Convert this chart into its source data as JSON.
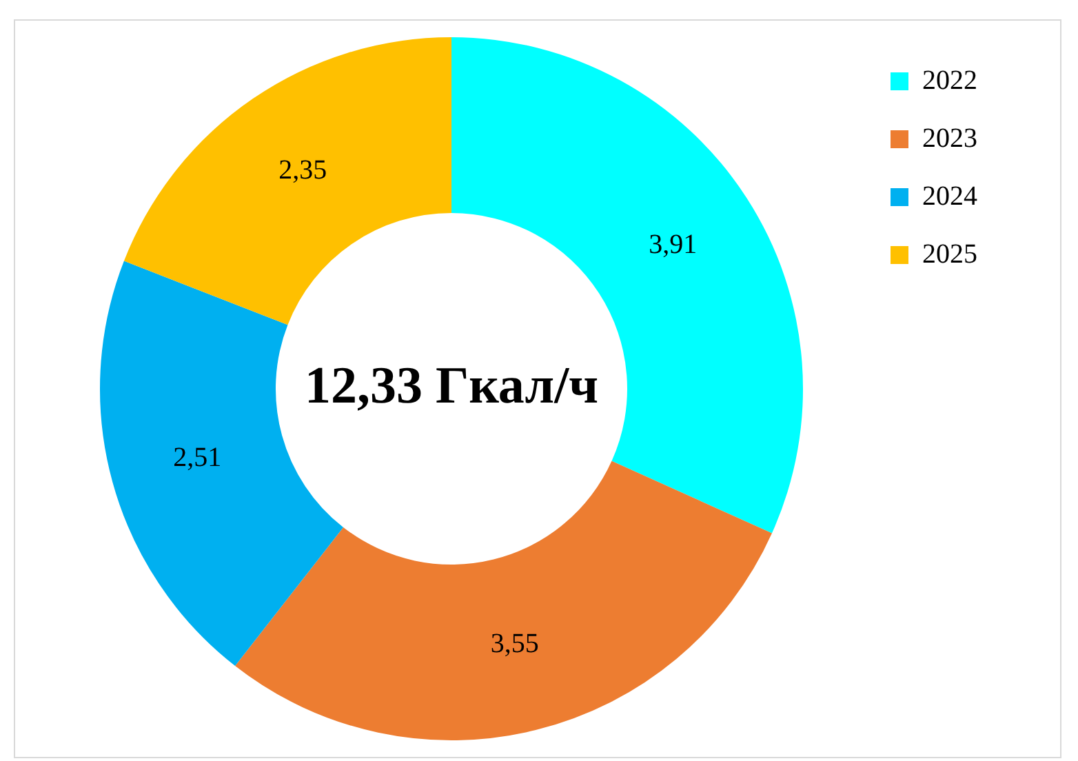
{
  "chart_data": {
    "type": "donut",
    "categories": [
      "2022",
      "2023",
      "2024",
      "2025"
    ],
    "values": [
      3.91,
      3.55,
      2.51,
      2.35
    ],
    "colors": [
      "#00ffff",
      "#ed7d31",
      "#00b0f0",
      "#ffc000"
    ],
    "value_labels": [
      "3,91",
      "3,55",
      "2,51",
      "2,35"
    ],
    "annotations": [
      "12,33 Гкал/ч"
    ],
    "legend": "right"
  }
}
